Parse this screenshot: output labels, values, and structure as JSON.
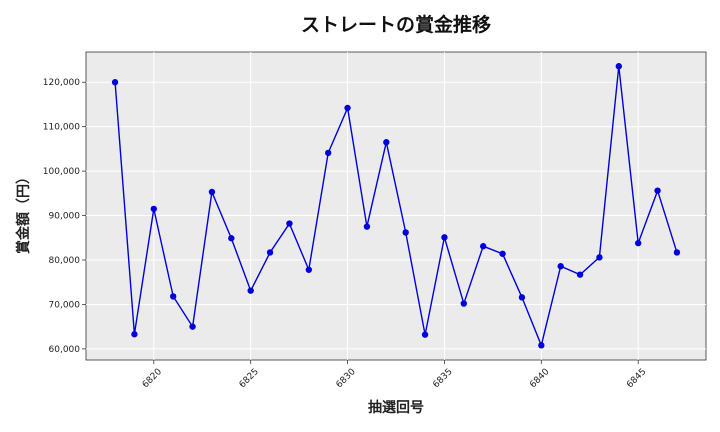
{
  "chart_data": {
    "type": "line",
    "title": "ストレートの賞金推移",
    "xlabel": "抽選回号",
    "ylabel": "賞金額（円）",
    "xlim": [
      6816.5,
      6848.5
    ],
    "ylim": [
      57500,
      126800
    ],
    "x_ticks": [
      6820,
      6825,
      6830,
      6835,
      6840,
      6845
    ],
    "y_ticks": [
      60000,
      70000,
      80000,
      90000,
      100000,
      110000,
      120000
    ],
    "grid": true,
    "series": [
      {
        "color": "#0000dd",
        "x": [
          6818,
          6819,
          6820,
          6821,
          6822,
          6823,
          6824,
          6825,
          6826,
          6827,
          6828,
          6829,
          6830,
          6831,
          6832,
          6833,
          6834,
          6835,
          6836,
          6837,
          6838,
          6839,
          6840,
          6841,
          6842,
          6843,
          6844,
          6845,
          6846,
          6847
        ],
        "values": [
          120000,
          63300,
          91500,
          71800,
          65000,
          95300,
          84900,
          73100,
          81700,
          88200,
          77800,
          104100,
          114200,
          87500,
          106500,
          86200,
          63200,
          85100,
          70200,
          83100,
          81400,
          71600,
          60800,
          78600,
          76700,
          80600,
          123600,
          83800,
          95600,
          81700
        ]
      }
    ]
  }
}
